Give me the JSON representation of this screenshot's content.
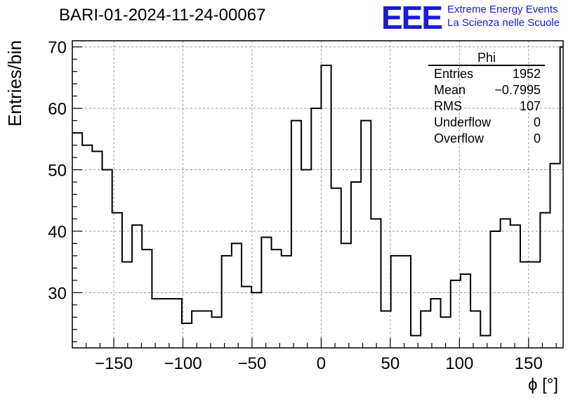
{
  "title": "BARI-01-2024-11-24-00067",
  "logo": {
    "mark": "EEE",
    "line1": "Extreme Energy Events",
    "line2": "La Scienza nelle Scuole",
    "color": "#1a1adc"
  },
  "stats": {
    "name": "Phi",
    "rows": [
      {
        "label": "Entries",
        "value": "1952"
      },
      {
        "label": "Mean",
        "value": "−0.7995"
      },
      {
        "label": "RMS",
        "value": "107"
      },
      {
        "label": "Underflow",
        "value": "0"
      },
      {
        "label": "Overflow",
        "value": "0"
      }
    ]
  },
  "chart_data": {
    "type": "histogram",
    "title": "BARI-01-2024-11-24-00067",
    "xlabel": "ϕ [°]",
    "ylabel": "Entries/bin",
    "xlim": [
      -180,
      175
    ],
    "ylim": [
      21,
      71
    ],
    "grid": true,
    "bin_width": 7.2,
    "x_start": -180,
    "values": [
      56,
      54,
      53,
      50,
      43,
      35,
      41,
      37,
      29,
      29,
      29,
      25,
      27,
      27,
      26,
      36,
      38,
      31,
      30,
      39,
      37,
      36,
      58,
      50,
      60,
      67,
      47,
      38,
      48,
      58,
      42,
      27,
      36,
      36,
      23,
      27,
      29,
      26,
      32,
      33,
      27,
      23,
      40,
      42,
      41,
      35,
      35,
      43,
      51,
      70
    ],
    "xticks": [
      -150,
      -100,
      -50,
      0,
      50,
      100,
      150
    ],
    "yticks": [
      30,
      40,
      50,
      60,
      70
    ],
    "xtick_labels": [
      "−150",
      "−100",
      "−50",
      "0",
      "50",
      "100",
      "150"
    ],
    "ytick_labels": [
      "30",
      "40",
      "50",
      "60",
      "70"
    ]
  }
}
